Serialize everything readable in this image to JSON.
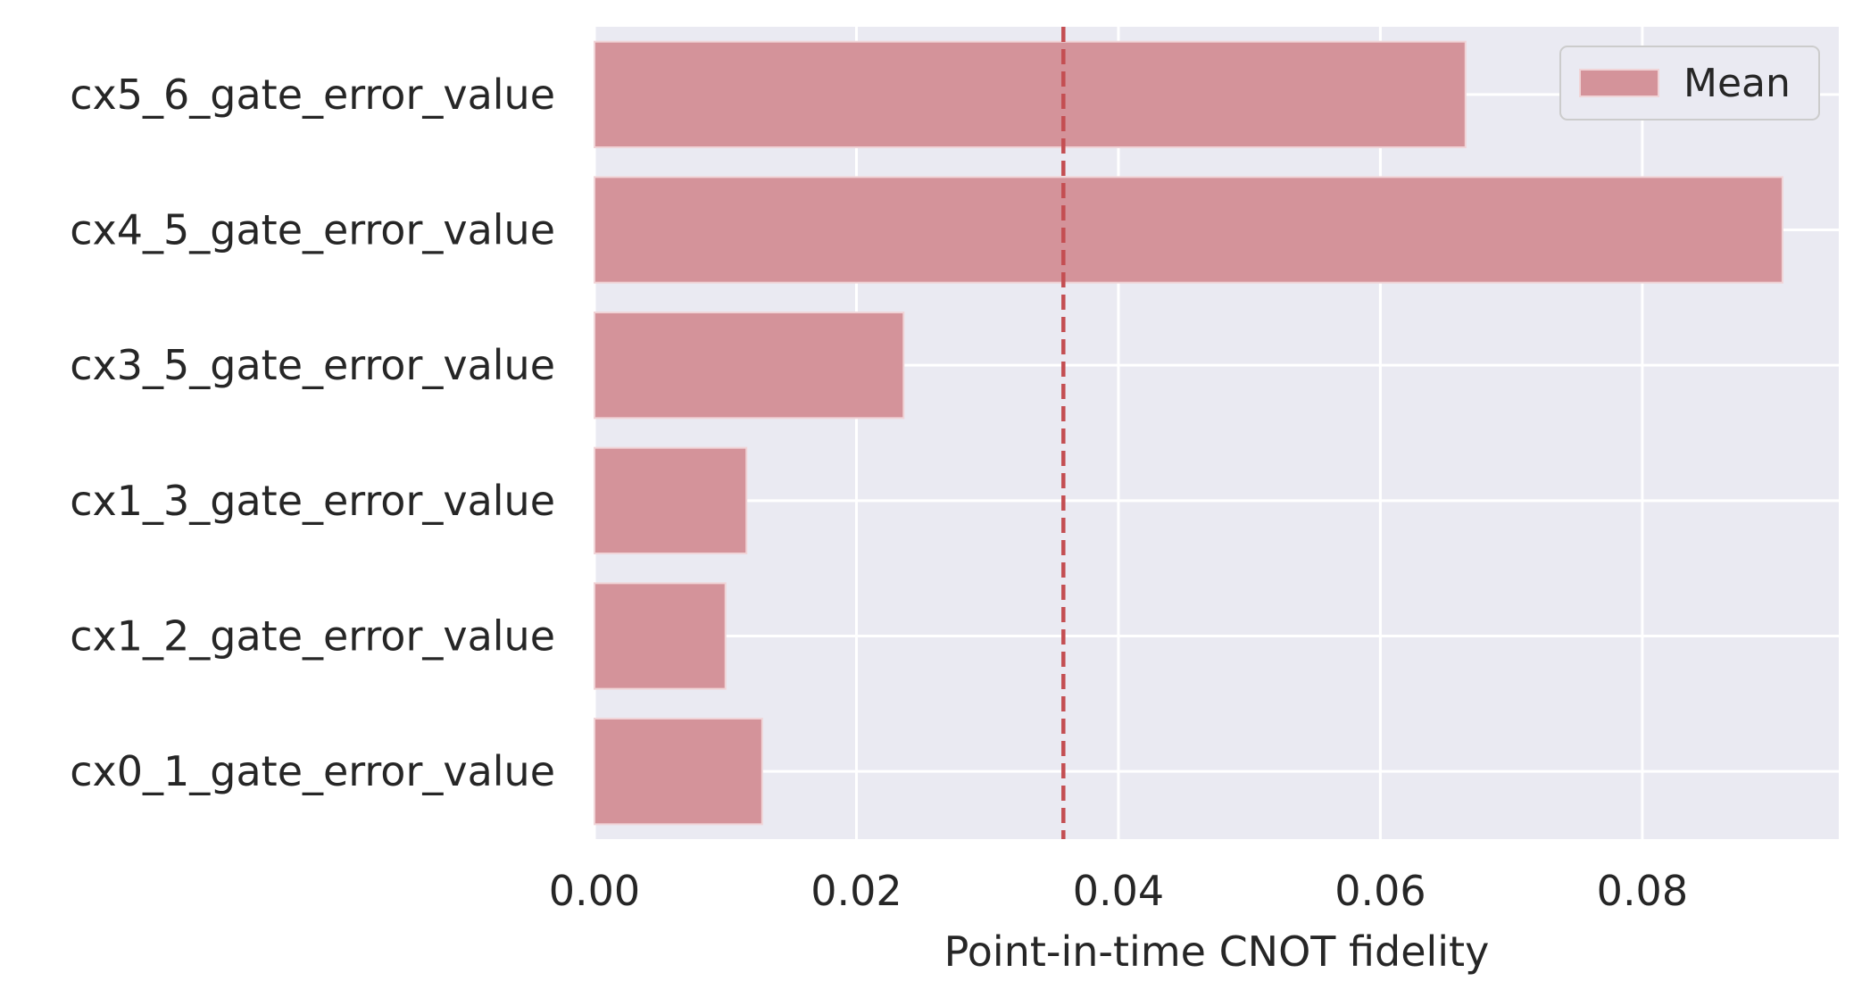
{
  "chart_data": {
    "type": "bar",
    "orientation": "horizontal",
    "categories": [
      "cx5_6_gate_error_value",
      "cx4_5_gate_error_value",
      "cx3_5_gate_error_value",
      "cx1_3_gate_error_value",
      "cx1_2_gate_error_value",
      "cx0_1_gate_error_value"
    ],
    "series": [
      {
        "name": "Mean",
        "values": [
          0.0665,
          0.0907,
          0.0236,
          0.0116,
          0.01,
          0.0128
        ],
        "color": "#d4939a"
      }
    ],
    "reference_line": {
      "x": 0.0358,
      "style": "dashed",
      "color": "#c44e52"
    },
    "xlabel": "Point-in-time CNOT fidelity",
    "ylabel": "",
    "xlim": [
      0,
      0.095
    ],
    "xticks": [
      0.0,
      0.02,
      0.04,
      0.06,
      0.08
    ],
    "xtick_labels": [
      "0.00",
      "0.02",
      "0.04",
      "0.06",
      "0.08"
    ],
    "grid": true,
    "legend": {
      "placement": "top-right",
      "entries": [
        "Mean"
      ]
    },
    "background": "#eaeaf2"
  }
}
